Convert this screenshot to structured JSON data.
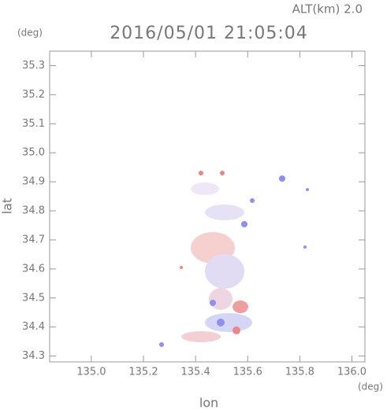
{
  "chart_data": {
    "type": "scatter",
    "title": "2016/05/01 21:05:04",
    "subtitle": "ALT(km) 2.0",
    "x_label": "lon",
    "y_label": "lat",
    "x_unit": "(deg)",
    "y_unit": "(deg)",
    "xlim": [
      134.84,
      136.05
    ],
    "xticks": [
      {
        "value": 135,
        "label": "135.0"
      },
      135.2,
      135.4,
      135.6,
      135.8,
      {
        "value": 136,
        "label": "136.0"
      }
    ],
    "ylim": [
      34.28,
      35.35
    ],
    "yticks": [
      34.3,
      34.4,
      34.5,
      34.6,
      34.7,
      34.8,
      34.9,
      {
        "value": 35,
        "label": "35.0"
      },
      35.1,
      35.2,
      35.3
    ],
    "grid": false
  }
}
